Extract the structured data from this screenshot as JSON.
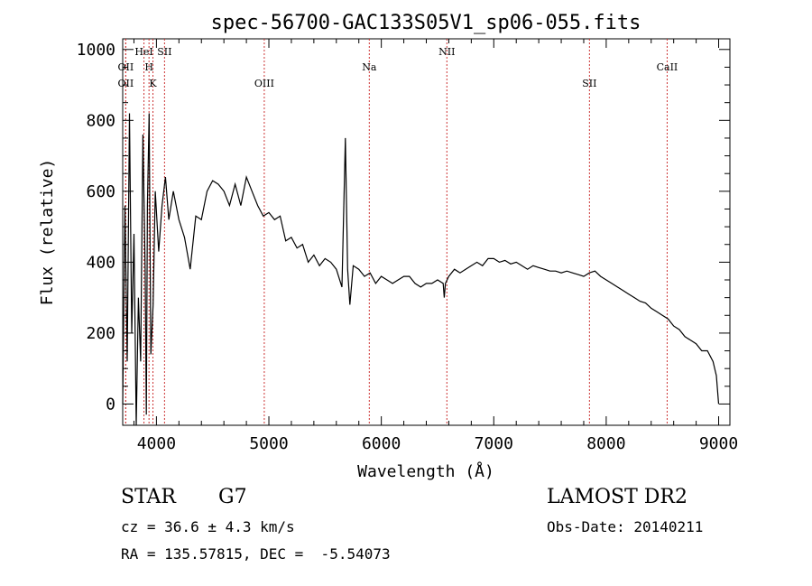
{
  "chart_data": {
    "type": "line",
    "title": "spec-56700-GAC133S05V1_sp06-055.fits",
    "xlabel": "Wavelength (Å)",
    "ylabel": "Flux (relative)",
    "xlim": [
      3700,
      9100
    ],
    "ylim": [
      -60,
      1030
    ],
    "x_ticks": [
      4000,
      5000,
      6000,
      7000,
      8000,
      9000
    ],
    "y_ticks": [
      0,
      200,
      400,
      600,
      800,
      1000
    ],
    "grid": false,
    "line_color": "#000000",
    "marker_color": "#cc3333",
    "spectral_lines": [
      {
        "label": "OII",
        "x": 3727,
        "row": 2
      },
      {
        "label": "OII",
        "x": 3727,
        "row": 3
      },
      {
        "label": "HeI",
        "x": 3889,
        "row": 1
      },
      {
        "label": "H",
        "x": 3934,
        "row": 2
      },
      {
        "label": "K",
        "x": 3969,
        "row": 3
      },
      {
        "label": "SII",
        "x": 4072,
        "row": 1
      },
      {
        "label": "OIII",
        "x": 4959,
        "row": 3
      },
      {
        "label": "Na",
        "x": 5893,
        "row": 2
      },
      {
        "label": "NII",
        "x": 6583,
        "row": 1
      },
      {
        "label": "SII",
        "x": 7851,
        "row": 3
      },
      {
        "label": "CaII",
        "x": 8542,
        "row": 2
      }
    ],
    "series": [
      {
        "x": [
          3700,
          3720,
          3740,
          3760,
          3780,
          3800,
          3820,
          3840,
          3860,
          3880,
          3900,
          3910,
          3920,
          3935,
          3950,
          3970,
          3990,
          4020,
          4050,
          4080,
          4110,
          4150,
          4200,
          4250,
          4300,
          4350,
          4400,
          4450,
          4500,
          4550,
          4600,
          4650,
          4700,
          4750,
          4800,
          4850,
          4900,
          4950,
          5000,
          5050,
          5100,
          5150,
          5200,
          5250,
          5300,
          5350,
          5400,
          5450,
          5500,
          5550,
          5600,
          5650,
          5680,
          5700,
          5720,
          5750,
          5800,
          5850,
          5900,
          5950,
          6000,
          6050,
          6100,
          6150,
          6200,
          6250,
          6300,
          6350,
          6400,
          6450,
          6500,
          6550,
          6560,
          6570,
          6600,
          6650,
          6700,
          6750,
          6800,
          6850,
          6900,
          6950,
          7000,
          7050,
          7100,
          7150,
          7200,
          7250,
          7300,
          7350,
          7400,
          7450,
          7500,
          7550,
          7600,
          7650,
          7700,
          7750,
          7800,
          7850,
          7900,
          7950,
          8000,
          8050,
          8100,
          8150,
          8200,
          8250,
          8300,
          8350,
          8400,
          8450,
          8500,
          8550,
          8600,
          8650,
          8700,
          8750,
          8800,
          8850,
          8900,
          8950,
          8980,
          9000
        ],
        "y": [
          0,
          560,
          120,
          820,
          200,
          480,
          -60,
          300,
          120,
          760,
          380,
          -30,
          560,
          820,
          140,
          280,
          600,
          430,
          560,
          640,
          520,
          600,
          520,
          470,
          380,
          530,
          520,
          600,
          630,
          620,
          600,
          560,
          620,
          560,
          640,
          600,
          560,
          530,
          540,
          520,
          530,
          460,
          470,
          440,
          450,
          400,
          420,
          390,
          410,
          400,
          380,
          330,
          750,
          380,
          280,
          390,
          380,
          360,
          370,
          340,
          360,
          350,
          340,
          350,
          360,
          360,
          340,
          330,
          340,
          340,
          350,
          340,
          300,
          340,
          360,
          380,
          370,
          380,
          390,
          400,
          390,
          410,
          410,
          400,
          405,
          395,
          400,
          390,
          380,
          390,
          385,
          380,
          375,
          375,
          370,
          375,
          370,
          365,
          360,
          370,
          375,
          360,
          350,
          340,
          330,
          320,
          310,
          300,
          290,
          285,
          270,
          260,
          250,
          240,
          220,
          210,
          190,
          180,
          170,
          150,
          150,
          120,
          80,
          0
        ]
      }
    ]
  },
  "footer": {
    "object_class": "STAR",
    "subclass": "G7",
    "survey": "LAMOST DR2",
    "cz": "cz = 36.6 ± 4.3 km/s",
    "obs_date": "Obs-Date: 20140211",
    "radec": "RA = 135.57815, DEC =  -5.54073"
  }
}
